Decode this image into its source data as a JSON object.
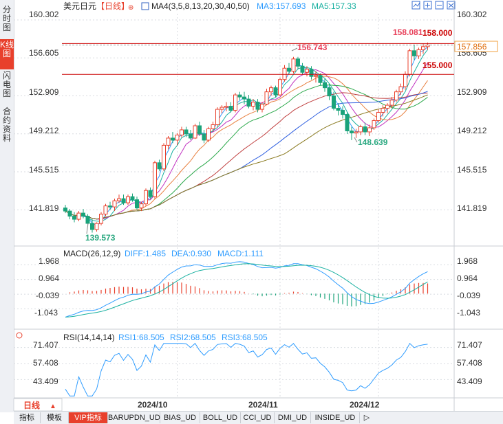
{
  "sidebar": {
    "tabs": [
      {
        "label": "分时图",
        "active": false
      },
      {
        "label": "K线图",
        "active": true
      },
      {
        "label": "闪电图",
        "active": false
      },
      {
        "label": "合约资料",
        "active": false
      }
    ]
  },
  "header": {
    "title": "美元日元",
    "period": "【日线】",
    "indicator": "MA4(3,5,8,13,20,30,40,50)",
    "ma3": "MA3:157.693",
    "ma5": "MA5:157.33"
  },
  "toolbar_icons": [
    "chart-type-icon",
    "zoom-in-icon",
    "zoom-out-icon",
    "fullscreen-icon"
  ],
  "price_axis": {
    "ticks": [
      "160.302",
      "156.605",
      "152.909",
      "149.212",
      "145.515",
      "141.819"
    ],
    "current_price": "157.856",
    "partial_label": "156.605"
  },
  "annotations": {
    "high_label": "156.743",
    "low_label": "148.639",
    "min_label": "139.573",
    "top_label": "158.081",
    "line_upper_label": "158.000",
    "line_lower_label": "155.000"
  },
  "macd": {
    "title": "MACD(26,12,9)",
    "diff": "DIFF:1.485",
    "dea": "DEA:0.930",
    "macd": "MACD:1.111",
    "ticks": [
      "1.968",
      "0.964",
      "-0.039",
      "-1.043"
    ]
  },
  "rsi": {
    "title": "RSI(14,14,14)",
    "rsi1": "RSI1:68.505",
    "rsi2": "RSI2:68.505",
    "rsi3": "RSI3:68.505",
    "ticks": [
      "71.407",
      "57.408",
      "43.409"
    ]
  },
  "x_axis": {
    "labels": [
      "2024/10",
      "2024/11",
      "2024/12"
    ]
  },
  "bottom_bar": {
    "period_label": "日线",
    "tabs": [
      "指标",
      "模板",
      "VIP指标",
      "BARUPDN_UD",
      "BIAS_UD",
      "BOLL_UD",
      "CCI_UD",
      "DMI_UD",
      "INSIDE_UD"
    ],
    "more": "▷"
  },
  "colors": {
    "up": "#e8402c",
    "down": "#1aa37a",
    "grid": "#d8dbe0",
    "ma": [
      "#2e9cff",
      "#18b0a0",
      "#c030c0",
      "#e88040",
      "#2aa84a",
      "#c04040",
      "#3060e0",
      "#8a7a20"
    ],
    "hline": "#cc0000"
  },
  "chart_data": {
    "type": "candlestick",
    "y_range": [
      139.5,
      160.9
    ],
    "candles": [
      [
        142.0,
        142.3,
        141.5,
        141.7
      ],
      [
        141.7,
        141.9,
        140.9,
        141.2
      ],
      [
        141.2,
        141.6,
        140.6,
        140.9
      ],
      [
        140.9,
        141.7,
        140.7,
        141.5
      ],
      [
        141.5,
        141.9,
        141.0,
        141.2
      ],
      [
        141.2,
        141.4,
        140.4,
        140.5
      ],
      [
        140.5,
        140.9,
        139.6,
        139.9
      ],
      [
        139.9,
        140.6,
        139.7,
        140.5
      ],
      [
        140.5,
        141.6,
        140.3,
        141.4
      ],
      [
        141.4,
        142.4,
        141.2,
        142.2
      ],
      [
        142.2,
        142.6,
        141.8,
        142.1
      ],
      [
        142.1,
        142.9,
        141.7,
        142.7
      ],
      [
        142.7,
        143.3,
        142.5,
        142.9
      ],
      [
        142.9,
        143.3,
        142.3,
        142.5
      ],
      [
        142.5,
        143.3,
        142.3,
        143.1
      ],
      [
        143.1,
        143.4,
        142.6,
        142.8
      ],
      [
        142.8,
        143.1,
        141.8,
        142.0
      ],
      [
        142.0,
        142.6,
        141.7,
        142.4
      ],
      [
        142.4,
        143.9,
        142.2,
        143.7
      ],
      [
        143.7,
        144.0,
        142.9,
        143.1
      ],
      [
        143.1,
        146.6,
        142.9,
        146.4
      ],
      [
        146.4,
        146.7,
        145.6,
        145.8
      ],
      [
        145.8,
        148.3,
        145.6,
        148.1
      ],
      [
        148.1,
        149.0,
        147.7,
        148.8
      ],
      [
        148.8,
        149.4,
        148.3,
        148.6
      ],
      [
        148.6,
        149.3,
        148.1,
        149.1
      ],
      [
        149.1,
        149.9,
        148.9,
        149.6
      ],
      [
        149.6,
        149.9,
        148.9,
        149.2
      ],
      [
        149.2,
        149.6,
        148.6,
        148.8
      ],
      [
        148.8,
        150.2,
        148.7,
        150.0
      ],
      [
        150.0,
        150.4,
        149.0,
        149.2
      ],
      [
        149.2,
        149.6,
        148.3,
        148.6
      ],
      [
        148.6,
        149.9,
        148.4,
        149.7
      ],
      [
        149.7,
        150.4,
        149.4,
        150.1
      ],
      [
        150.1,
        151.8,
        149.9,
        151.6
      ],
      [
        151.6,
        152.0,
        151.2,
        151.8
      ],
      [
        151.8,
        152.3,
        151.4,
        151.9
      ],
      [
        151.9,
        152.3,
        151.3,
        151.5
      ],
      [
        151.5,
        153.2,
        151.3,
        153.0
      ],
      [
        153.0,
        153.3,
        152.5,
        152.8
      ],
      [
        152.8,
        153.3,
        152.1,
        152.6
      ],
      [
        152.6,
        153.0,
        151.7,
        151.9
      ],
      [
        151.9,
        152.6,
        151.5,
        152.3
      ],
      [
        152.3,
        152.6,
        151.3,
        151.6
      ],
      [
        151.6,
        152.3,
        151.3,
        152.1
      ],
      [
        152.1,
        153.6,
        152.0,
        153.3
      ],
      [
        153.3,
        153.9,
        152.9,
        153.7
      ],
      [
        153.7,
        153.9,
        152.8,
        153.0
      ],
      [
        153.0,
        154.7,
        152.9,
        154.5
      ],
      [
        154.5,
        155.9,
        154.3,
        155.6
      ],
      [
        155.6,
        156.1,
        155.0,
        155.3
      ],
      [
        155.3,
        156.7,
        155.1,
        156.5
      ],
      [
        156.5,
        156.7,
        155.5,
        155.8
      ],
      [
        155.8,
        156.1,
        155.0,
        155.2
      ],
      [
        155.2,
        155.8,
        154.8,
        155.5
      ],
      [
        155.5,
        155.8,
        154.5,
        154.8
      ],
      [
        154.8,
        155.3,
        154.2,
        154.9
      ],
      [
        154.9,
        155.1,
        153.9,
        154.2
      ],
      [
        154.2,
        154.6,
        153.3,
        153.7
      ],
      [
        153.7,
        154.1,
        152.5,
        152.9
      ],
      [
        152.9,
        153.3,
        151.5,
        151.7
      ],
      [
        151.7,
        152.2,
        151.0,
        151.5
      ],
      [
        151.5,
        151.9,
        150.7,
        151.1
      ],
      [
        151.1,
        151.3,
        149.2,
        149.5
      ],
      [
        149.5,
        149.9,
        148.6,
        149.3
      ],
      [
        149.3,
        149.7,
        148.8,
        149.4
      ],
      [
        149.4,
        150.1,
        149.1,
        149.9
      ],
      [
        149.9,
        150.3,
        149.1,
        149.4
      ],
      [
        149.4,
        150.1,
        149.0,
        149.8
      ],
      [
        149.8,
        150.7,
        149.6,
        150.5
      ],
      [
        150.5,
        151.6,
        150.3,
        151.3
      ],
      [
        151.3,
        152.0,
        150.9,
        151.7
      ],
      [
        151.7,
        152.2,
        151.2,
        152.0
      ],
      [
        152.0,
        152.8,
        151.7,
        152.5
      ],
      [
        152.5,
        153.5,
        152.3,
        153.3
      ],
      [
        153.3,
        154.1,
        153.0,
        153.8
      ],
      [
        153.8,
        155.3,
        153.5,
        155.0
      ],
      [
        155.0,
        157.5,
        154.8,
        157.3
      ],
      [
        157.3,
        157.9,
        156.4,
        156.8
      ],
      [
        156.8,
        157.6,
        156.5,
        157.4
      ],
      [
        157.4,
        158.0,
        157.0,
        157.7
      ],
      [
        157.7,
        158.1,
        157.4,
        157.86
      ]
    ],
    "hlines": [
      158.0,
      155.0
    ],
    "macd_range": [
      -2.0,
      2.4
    ],
    "rsi_range": [
      28.0,
      76.0
    ],
    "x_label_positions": [
      25,
      48,
      70
    ]
  }
}
